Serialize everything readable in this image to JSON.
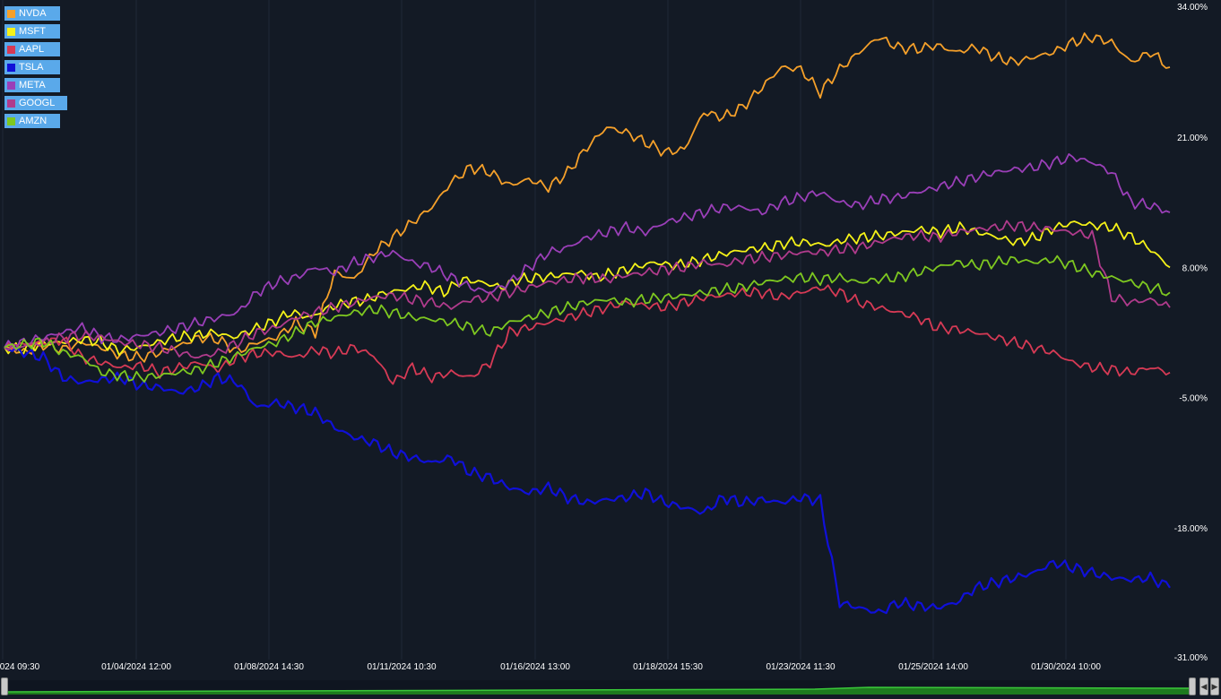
{
  "chart_data": {
    "type": "line",
    "y_axis": {
      "ticks": [
        "34.00%",
        "21.00%",
        "8.00%",
        "-5.00%",
        "-18.00%",
        "-31.00%"
      ],
      "range": [
        -31,
        34
      ],
      "position": "right"
    },
    "x_axis": {
      "ticks": [
        "024 09:30",
        "01/04/2024 12:00",
        "01/08/2024 14:30",
        "01/11/2024 10:30",
        "01/16/2024 13:00",
        "01/18/2024 15:30",
        "01/23/2024 11:30",
        "01/25/2024 14:00",
        "01/30/2024 10:00"
      ]
    },
    "grid": "vertical",
    "legend_position": "top-left",
    "series": [
      {
        "name": "NVDA",
        "color": "#f5a02a",
        "values": [
          0.0,
          -0.5,
          0.3,
          -0.2,
          0.5,
          0.0,
          -0.8,
          -1.0,
          -0.5,
          0.2,
          1.0,
          0.8,
          -0.4,
          0.5,
          1.0,
          2.5,
          1.5,
          7.5,
          6.8,
          9.5,
          11.0,
          12.5,
          14.0,
          16.5,
          18.0,
          17.5,
          16.2,
          16.8,
          16.0,
          17.5,
          20.0,
          22.0,
          21.5,
          20.5,
          19.5,
          19.8,
          23.5,
          23.0,
          24.0,
          26.0,
          28.0,
          27.8,
          25.5,
          27.8,
          29.5,
          31.0,
          30.0,
          29.8,
          30.2,
          29.5,
          30.0,
          29.0,
          28.5,
          29.0,
          29.5,
          30.5,
          31.0,
          30.5,
          28.5,
          29.5,
          28.0
        ]
      },
      {
        "name": "MSFT",
        "color": "#f5f218",
        "values": [
          0.0,
          -0.2,
          0.4,
          0.5,
          0.8,
          0.6,
          -0.3,
          0.0,
          0.5,
          1.0,
          1.2,
          1.5,
          1.0,
          1.8,
          2.5,
          3.5,
          3.0,
          4.0,
          4.5,
          4.8,
          5.5,
          5.8,
          6.2,
          5.5,
          6.8,
          6.5,
          6.0,
          6.8,
          7.0,
          7.2,
          7.5,
          7.0,
          7.5,
          8.0,
          8.5,
          8.2,
          8.5,
          9.0,
          9.5,
          9.8,
          10.0,
          10.5,
          10.5,
          10.2,
          10.8,
          11.0,
          11.2,
          11.5,
          11.8,
          11.5,
          12.0,
          11.5,
          11.0,
          10.5,
          11.0,
          12.0,
          12.5,
          12.2,
          12.0,
          11.0,
          9.8,
          8.0
        ]
      },
      {
        "name": "AAPL",
        "color": "#d63a55",
        "values": [
          0.0,
          0.3,
          0.5,
          0.8,
          -1.0,
          -1.5,
          -2.0,
          -1.8,
          -2.5,
          -2.0,
          -1.5,
          -2.2,
          -1.0,
          -0.6,
          -0.5,
          -1.0,
          -0.2,
          -0.6,
          0.0,
          -0.8,
          -3.5,
          -2.0,
          -3.0,
          -2.5,
          -3.0,
          -1.5,
          1.5,
          2.0,
          2.5,
          3.0,
          3.5,
          4.0,
          4.5,
          4.2,
          4.0,
          4.5,
          5.0,
          5.2,
          5.5,
          5.5,
          5.0,
          5.5,
          6.0,
          5.5,
          4.5,
          4.0,
          3.5,
          3.0,
          2.0,
          1.8,
          1.5,
          1.0,
          0.5,
          0.0,
          -0.5,
          -1.5,
          -2.0,
          -2.2,
          -2.5,
          -2.0,
          -2.5
        ]
      },
      {
        "name": "TSLA",
        "color": "#1010d8",
        "values": [
          0.0,
          -0.5,
          -1.0,
          -3.0,
          -3.5,
          -3.2,
          -3.0,
          -3.8,
          -4.0,
          -4.5,
          -4.0,
          -3.0,
          -3.5,
          -6.0,
          -5.5,
          -6.0,
          -6.5,
          -8.0,
          -9.0,
          -9.5,
          -10.5,
          -11.0,
          -11.5,
          -11.0,
          -12.5,
          -13.0,
          -14.0,
          -14.5,
          -14.0,
          -15.0,
          -15.5,
          -15.2,
          -15.0,
          -14.5,
          -15.5,
          -16.0,
          -16.5,
          -15.0,
          -15.5,
          -15.2,
          -15.5,
          -15.0,
          -15.3,
          -25.5,
          -26.0,
          -26.5,
          -25.5,
          -25.8,
          -26.0,
          -25.5,
          -24.0,
          -23.5,
          -23.0,
          -22.5,
          -21.5,
          -22.0,
          -22.5,
          -23.0,
          -23.2,
          -23.0,
          -24.0
        ]
      },
      {
        "name": "META",
        "color": "#9a3fb8",
        "values": [
          0.0,
          0.5,
          1.0,
          1.5,
          2.0,
          1.0,
          0.8,
          1.2,
          1.5,
          2.0,
          2.5,
          3.0,
          3.5,
          5.5,
          6.5,
          7.0,
          8.0,
          7.5,
          8.5,
          9.0,
          9.5,
          8.5,
          8.0,
          7.0,
          6.0,
          5.5,
          6.5,
          8.0,
          9.5,
          10.0,
          11.0,
          11.5,
          12.0,
          11.5,
          12.5,
          13.0,
          13.5,
          14.0,
          14.0,
          13.5,
          14.5,
          15.0,
          15.5,
          14.5,
          14.2,
          14.8,
          15.0,
          15.5,
          16.0,
          16.5,
          17.0,
          17.5,
          17.8,
          18.0,
          18.5,
          19.0,
          18.5,
          17.5,
          14.5,
          14.2,
          13.5
        ]
      },
      {
        "name": "GOOGL",
        "color": "#b03b8c",
        "values": [
          0.0,
          0.2,
          0.5,
          1.0,
          1.2,
          1.0,
          0.5,
          0.3,
          0.0,
          -0.5,
          -1.0,
          -0.5,
          0.5,
          1.5,
          2.0,
          3.0,
          3.5,
          4.0,
          4.5,
          5.0,
          5.2,
          4.8,
          4.5,
          4.0,
          4.8,
          5.0,
          5.5,
          6.0,
          6.5,
          6.8,
          7.0,
          6.8,
          7.2,
          7.5,
          7.8,
          8.0,
          8.5,
          8.2,
          8.8,
          9.0,
          9.2,
          9.5,
          9.5,
          9.8,
          10.0,
          10.5,
          11.0,
          11.2,
          11.0,
          11.5,
          11.8,
          12.0,
          12.2,
          12.0,
          11.8,
          11.5,
          11.2,
          5.0,
          4.5,
          4.8,
          4.0
        ]
      },
      {
        "name": "AMZN",
        "color": "#7ec820",
        "values": [
          0.0,
          0.3,
          0.6,
          -0.5,
          -1.0,
          -2.5,
          -2.8,
          -3.0,
          -2.8,
          -2.5,
          -2.2,
          -1.5,
          -0.8,
          0.0,
          0.5,
          1.5,
          2.5,
          3.0,
          3.5,
          3.8,
          3.5,
          3.0,
          2.8,
          2.5,
          2.0,
          1.5,
          2.5,
          3.0,
          3.5,
          4.0,
          4.5,
          4.8,
          4.5,
          4.8,
          5.0,
          5.2,
          5.5,
          5.8,
          6.0,
          6.5,
          6.8,
          7.0,
          6.8,
          7.0,
          6.5,
          6.8,
          7.0,
          7.5,
          8.0,
          8.5,
          8.2,
          8.5,
          8.8,
          8.5,
          8.8,
          8.2,
          7.5,
          7.0,
          6.5,
          6.0,
          5.5
        ]
      }
    ]
  }
}
